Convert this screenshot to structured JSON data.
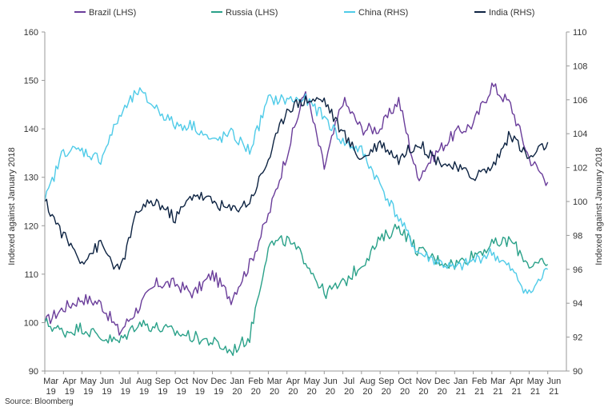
{
  "chart_data": {
    "type": "line",
    "title": "",
    "ylabel_left": "Indexed against January 2018",
    "ylabel_right": "Indexed against January 2018",
    "ylim_left": [
      90,
      160
    ],
    "ylim_right": [
      90,
      110
    ],
    "yticks_left": [
      "90",
      "100",
      "110",
      "120",
      "130",
      "140",
      "150",
      "160"
    ],
    "yticks_right": [
      "90",
      "92",
      "94",
      "96",
      "98",
      "100",
      "102",
      "104",
      "106",
      "108",
      "110"
    ],
    "x_ticks": [
      [
        "Mar",
        "19"
      ],
      [
        "Apr",
        "19"
      ],
      [
        "May",
        "19"
      ],
      [
        "Jun",
        "19"
      ],
      [
        "Jul",
        "19"
      ],
      [
        "Aug",
        "19"
      ],
      [
        "Sep",
        "19"
      ],
      [
        "Oct",
        "19"
      ],
      [
        "Nov",
        "19"
      ],
      [
        "Dec",
        "19"
      ],
      [
        "Jan",
        "20"
      ],
      [
        "Feb",
        "20"
      ],
      [
        "Mar",
        "20"
      ],
      [
        "Apr",
        "20"
      ],
      [
        "May",
        "20"
      ],
      [
        "Jun",
        "20"
      ],
      [
        "Jul",
        "20"
      ],
      [
        "Aug",
        "20"
      ],
      [
        "Sep",
        "20"
      ],
      [
        "Oct",
        "20"
      ],
      [
        "Nov",
        "20"
      ],
      [
        "Dec",
        "20"
      ],
      [
        "Jan",
        "21"
      ],
      [
        "Feb",
        "21"
      ],
      [
        "Mar",
        "21"
      ],
      [
        "Apr",
        "21"
      ],
      [
        "May",
        "21"
      ],
      [
        "Jun",
        "21"
      ]
    ],
    "legend_position": "top",
    "grid": false,
    "series": [
      {
        "name": "Brazil (LHS)",
        "axis": "left",
        "color": "#6a3d9a",
        "values": [
          100,
          103,
          105,
          104,
          98,
          103,
          108,
          108,
          106,
          110,
          105,
          112,
          122,
          135,
          148,
          132,
          146,
          140,
          140,
          146,
          130,
          135,
          139,
          141,
          149,
          145,
          134,
          129
        ]
      },
      {
        "name": "Russia (LHS)",
        "axis": "left",
        "color": "#2aa189",
        "values": [
          100,
          98,
          99,
          97,
          96,
          100,
          99,
          98,
          97,
          96,
          94,
          97,
          116,
          117,
          113,
          106,
          108,
          112,
          117,
          120,
          115,
          113,
          112,
          114,
          116,
          117,
          112,
          112
        ]
      },
      {
        "name": "China (RHS)",
        "axis": "right",
        "color": "#4fcbe8",
        "values": [
          100,
          103,
          103,
          102.5,
          105,
          106.5,
          105.5,
          104.5,
          104.5,
          103.5,
          104,
          103,
          106,
          106,
          106,
          105,
          103.5,
          103,
          101,
          99,
          97,
          96.5,
          96,
          96.5,
          97,
          96,
          94.5,
          96
        ]
      },
      {
        "name": "India (RHS)",
        "axis": "right",
        "color": "#0d2342",
        "values": [
          100,
          98,
          96.5,
          97.5,
          95.8,
          99.5,
          100,
          99,
          100.5,
          100,
          99.5,
          100,
          102.5,
          105.5,
          106,
          106,
          104,
          102.5,
          103.5,
          102.5,
          103.5,
          102.5,
          102,
          101.5,
          102,
          104,
          102.5,
          103.5
        ]
      }
    ]
  },
  "source_text": "Source: Bloomberg"
}
